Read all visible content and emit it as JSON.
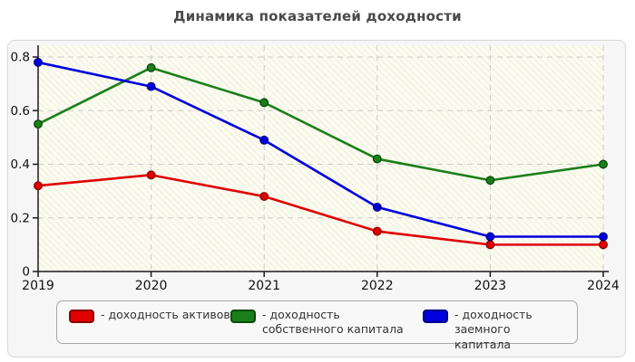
{
  "title": "Динамика показателей доходности",
  "chart_data": {
    "type": "line",
    "x_labels": [
      "2019",
      "2020",
      "2021",
      "2022",
      "2023",
      "2024"
    ],
    "yticks": [
      "0",
      "0.2",
      "0.4",
      "0.6",
      "0.8"
    ],
    "ytick_values": [
      0,
      0.2,
      0.4,
      0.6,
      0.8
    ],
    "ylim": [
      0,
      0.8
    ],
    "grid": "dashed",
    "legend_position": "bottom",
    "plot_background": "#fbfbef",
    "series": [
      {
        "name": "доходность активов",
        "color": "#e00000",
        "edge": "#8b0000",
        "values": [
          0.32,
          0.36,
          0.28,
          0.15,
          0.1,
          0.1
        ]
      },
      {
        "name": "доходность собственного капитала",
        "color": "#1a7f1a",
        "edge": "#0b4a0b",
        "values": [
          0.55,
          0.76,
          0.63,
          0.42,
          0.34,
          0.4
        ]
      },
      {
        "name": "доходность заемного капитала",
        "color": "#0000dd",
        "edge": "#00008b",
        "values": [
          0.78,
          0.69,
          0.49,
          0.24,
          0.13,
          0.13
        ]
      }
    ]
  },
  "legend": {
    "items": [
      {
        "label": "- доходность активов"
      },
      {
        "label": "- доходность собственного капитала"
      },
      {
        "label": "- доходность заемного капитала"
      }
    ]
  }
}
